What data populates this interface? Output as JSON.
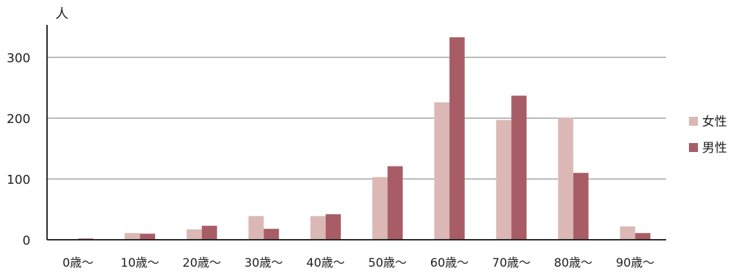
{
  "chart_data": {
    "type": "bar",
    "unit_label": "人",
    "categories": [
      "0歳～",
      "10歳～",
      "20歳～",
      "30歳～",
      "40歳～",
      "50歳～",
      "60歳～",
      "70歳～",
      "80歳～",
      "90歳～"
    ],
    "series": [
      {
        "name": "女性",
        "color": "#dbb8b6",
        "values": [
          0,
          11,
          17,
          39,
          39,
          103,
          226,
          197,
          201,
          22
        ]
      },
      {
        "name": "男性",
        "color": "#a85d66",
        "values": [
          2,
          10,
          23,
          18,
          42,
          121,
          333,
          237,
          110,
          11
        ]
      }
    ],
    "yticks": [
      0,
      100,
      200,
      300
    ],
    "ylim": [
      0,
      350
    ],
    "grid": true,
    "legend_position": "right"
  }
}
